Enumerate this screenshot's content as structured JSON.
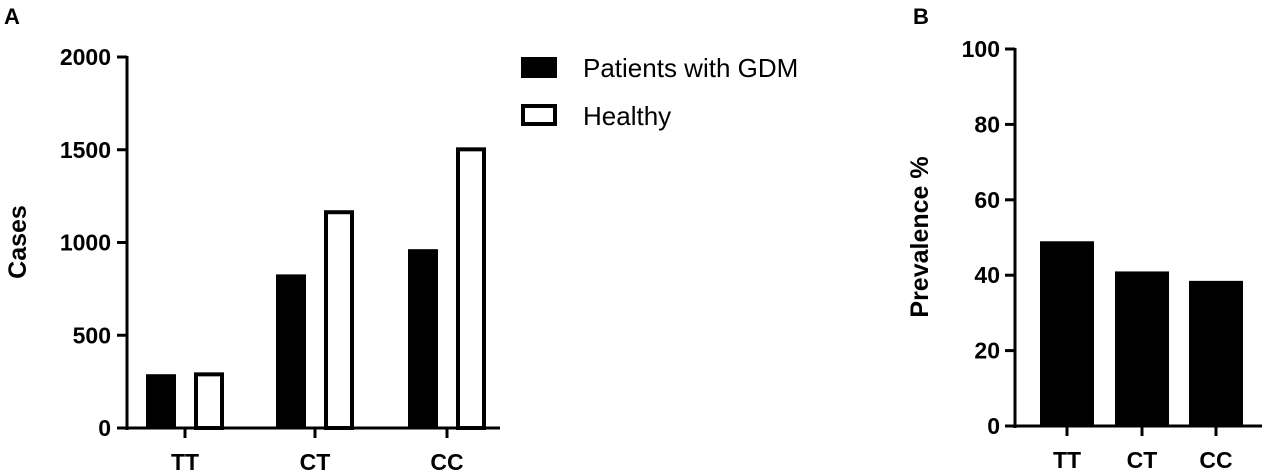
{
  "chart_data": [
    {
      "panel": "A",
      "type": "bar",
      "categories": [
        "TT",
        "CT",
        "CC"
      ],
      "series": [
        {
          "name": "Patients with GDM",
          "values": [
            290,
            828,
            964
          ],
          "color": "#000000",
          "fill": "solid"
        },
        {
          "name": "Healthy",
          "values": [
            300,
            1174,
            1513
          ],
          "color": "#000000",
          "fill": "hollow"
        }
      ],
      "ylabel": "Cases",
      "ylim": [
        0,
        2000
      ],
      "yticks": [
        0,
        500,
        1000,
        1500,
        2000
      ],
      "legend": "top-right",
      "grid": false
    },
    {
      "panel": "B",
      "type": "bar",
      "categories": [
        "TT",
        "CT",
        "CC"
      ],
      "series": [
        {
          "values": [
            49,
            41,
            38.5
          ],
          "color": "#000000",
          "fill": "solid"
        }
      ],
      "ylabel": "Prevalence %",
      "ylim": [
        0,
        100
      ],
      "yticks": [
        0,
        20,
        40,
        60,
        80,
        100
      ],
      "grid": false
    }
  ]
}
